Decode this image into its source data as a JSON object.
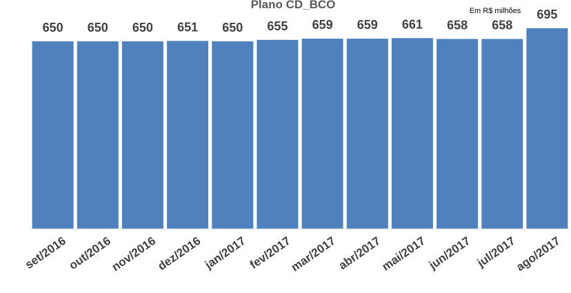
{
  "chart_data": {
    "type": "bar",
    "title": "Plano CD_BCO",
    "unit_note": "Em R$ milhões",
    "categories": [
      "set/2016",
      "out/2016",
      "nov/2016",
      "dez/2016",
      "jan/2017",
      "fev/2017",
      "mar/2017",
      "abr/2017",
      "mai/2017",
      "jun/2017",
      "jul/2017",
      "ago/2017"
    ],
    "series": [
      {
        "values": [
          650,
          650,
          650,
          651,
          650,
          655,
          659,
          659,
          661,
          658,
          658,
          695
        ],
        "color": "#4f81bd"
      }
    ],
    "ylim": [
      0,
      750
    ],
    "grid": false,
    "legend": "none",
    "data_labels": true
  }
}
